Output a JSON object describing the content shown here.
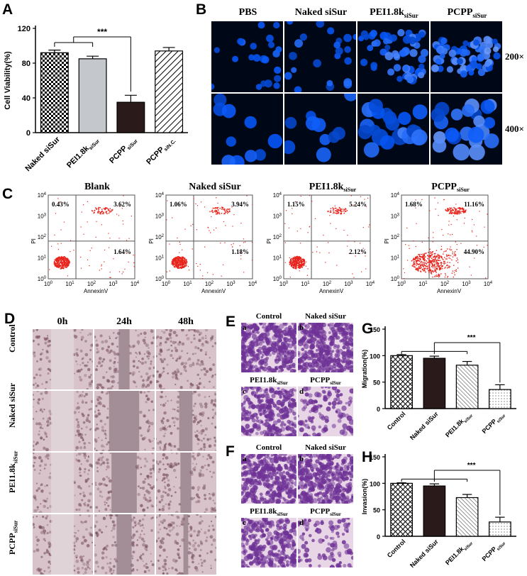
{
  "panels": {
    "A": {
      "letter": "A",
      "ylabel": "Cell Viability(%)",
      "yticks": [
        "0",
        "40",
        "80",
        "120"
      ],
      "categories": [
        "Naked siSur",
        "PEI1.8k",
        "PCPP",
        "PCPP"
      ],
      "category_subs": [
        "",
        "siSur",
        "siSur",
        "siN.C."
      ],
      "sig": "***"
    },
    "B": {
      "letter": "B",
      "cols": [
        "PBS",
        "Naked siSur",
        "PEI1.8k",
        "PCPP"
      ],
      "col_subs": [
        "",
        "",
        "siSur",
        "siSur"
      ],
      "rows": [
        "200×",
        "400×"
      ]
    },
    "C": {
      "letter": "C",
      "titles": [
        "Blank",
        "Naked siSur",
        "PEI1.8k",
        "PCPP"
      ],
      "title_subs": [
        "",
        "",
        "siSur",
        "siSur"
      ],
      "ylabel": "PI",
      "xlabel": "AnnexinV",
      "ticks_y": [
        "10",
        "10",
        "10",
        "10",
        "10"
      ],
      "tick_exp": [
        "0",
        "1",
        "2",
        "3",
        "4"
      ],
      "q_ul": [
        "0.43%",
        "1.06%",
        "1.15%",
        "1.68%"
      ],
      "q_ur": [
        "3.62%",
        "3.94%",
        "5.24%",
        "11.16%"
      ],
      "q_lr": [
        "1.64%",
        "1.18%",
        "2.12%",
        "44.90%"
      ]
    },
    "D": {
      "letter": "D",
      "cols": [
        "0h",
        "24h",
        "48h"
      ],
      "rows": [
        "Control",
        "Naked siSur",
        "PEI1.8k",
        "PCPP"
      ],
      "row_subs": [
        "",
        "",
        "siSur",
        "siSur"
      ]
    },
    "E": {
      "letter": "E",
      "labels": [
        "Control",
        "Naked siSur",
        "PEI1.8k",
        "PCPP"
      ],
      "label_subs": [
        "",
        "",
        "siSur",
        "siSur"
      ],
      "sub_letters": [
        "a",
        "b",
        "c",
        "d"
      ]
    },
    "F": {
      "letter": "F",
      "labels": [
        "Control",
        "Naked siSur",
        "PEI1.8k",
        "PCPP"
      ],
      "label_subs": [
        "",
        "",
        "siSur",
        "siSur"
      ],
      "sub_letters": [
        "a",
        "b",
        "c",
        "d"
      ]
    },
    "G": {
      "letter": "G",
      "ylabel": "Migration(%)",
      "yticks": [
        "0",
        "50",
        "100",
        "150"
      ],
      "categories": [
        "Control",
        "Naked siSur",
        "PEI1.8k",
        "PCPP"
      ],
      "category_subs": [
        "",
        "",
        "siSur",
        "siSur"
      ],
      "sig": "***"
    },
    "H": {
      "letter": "H",
      "ylabel": "Invasion(%)",
      "yticks": [
        "0",
        "50",
        "100",
        "150"
      ],
      "categories": [
        "Control",
        "Naked siSur",
        "PEI1.8k",
        "PCPP"
      ],
      "category_subs": [
        "",
        "",
        "siSur",
        "siSur"
      ],
      "sig": "***"
    }
  },
  "colors": {
    "dark_bar": "#2a1a1a",
    "grey_bar": "#c4c8cc",
    "stain": "#8a4fa8",
    "flow_dot": "#e8241c",
    "nuclei": "#2e6bff"
  },
  "chart_data": [
    {
      "type": "bar",
      "ylabel": "Cell Viability(%)",
      "categories": [
        "Naked siSur",
        "PEI1.8k siSur",
        "PCPP siSur",
        "PCPP siN.C."
      ],
      "values": [
        92,
        85,
        35,
        94
      ],
      "errors": [
        3,
        3,
        8,
        4
      ],
      "ylim": [
        0,
        120
      ],
      "significance": "***"
    },
    {
      "type": "bar",
      "ylabel": "Migration(%)",
      "categories": [
        "Control",
        "Naked siSur",
        "PEI1.8k siSur",
        "PCPP siSur"
      ],
      "values": [
        100,
        95,
        82,
        36
      ],
      "errors": [
        2,
        4,
        7,
        9
      ],
      "ylim": [
        0,
        150
      ],
      "significance": "***"
    },
    {
      "type": "bar",
      "ylabel": "Invasion(%)",
      "categories": [
        "Control",
        "Naked siSur",
        "PEI1.8k siSur",
        "PCPP siSur"
      ],
      "values": [
        100,
        95,
        73,
        27
      ],
      "errors": [
        1,
        4,
        6,
        9
      ],
      "ylim": [
        0,
        150
      ],
      "significance": "***"
    }
  ]
}
